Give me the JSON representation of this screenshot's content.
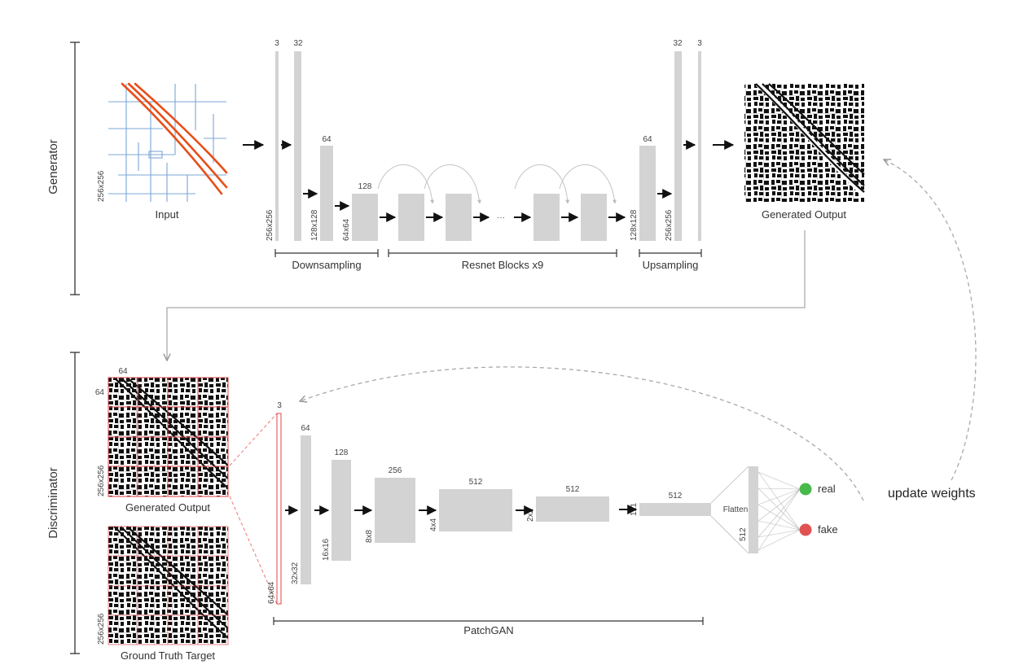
{
  "colors": {
    "layer": "#d3d3d3",
    "patch_border": "#e0464b",
    "road_major": "#e84e17",
    "road_minor": "#7ba7d6",
    "real": "#49b94b",
    "fake": "#e05252",
    "dashed": "#a9a9a9"
  },
  "generator": {
    "section_label": "Generator",
    "input": {
      "label": "Input",
      "dim": "256x256"
    },
    "downsampling": {
      "label": "Downsampling",
      "layers": [
        {
          "channels": "3",
          "dim": "256x256"
        },
        {
          "channels": "32",
          "dim": ""
        },
        {
          "channels": "64",
          "dim": "128x128"
        },
        {
          "channels": "128",
          "dim": "64x64"
        }
      ]
    },
    "resnet": {
      "label": "Resnet Blocks x9",
      "ellipsis": "···"
    },
    "upsampling": {
      "label": "Upsampling",
      "layers": [
        {
          "channels": "64",
          "dim": "128x128"
        },
        {
          "channels": "32",
          "dim": "256x256"
        },
        {
          "channels": "3",
          "dim": ""
        }
      ]
    },
    "output": {
      "label": "Generated Output"
    }
  },
  "discriminator": {
    "section_label": "Discriminator",
    "generated": {
      "label": "Generated Output",
      "dim": "256x256",
      "patch_w": "64",
      "patch_h": "64"
    },
    "target": {
      "label": "Ground Truth Target",
      "dim": "256x256"
    },
    "patchgan": {
      "label": "PatchGAN",
      "layers": [
        {
          "channels": "3",
          "dim": "64x64"
        },
        {
          "channels": "64",
          "dim": "32x32"
        },
        {
          "channels": "128",
          "dim": "16x16"
        },
        {
          "channels": "256",
          "dim": "8x8"
        },
        {
          "channels": "512",
          "dim": "4x4"
        },
        {
          "channels": "512",
          "dim": "2x2"
        },
        {
          "channels": "512",
          "dim": "1x1"
        }
      ]
    },
    "flatten": {
      "label": "Flatten",
      "dim": "512"
    },
    "outputs": {
      "real": "real",
      "fake": "fake"
    },
    "update": "update weights"
  }
}
